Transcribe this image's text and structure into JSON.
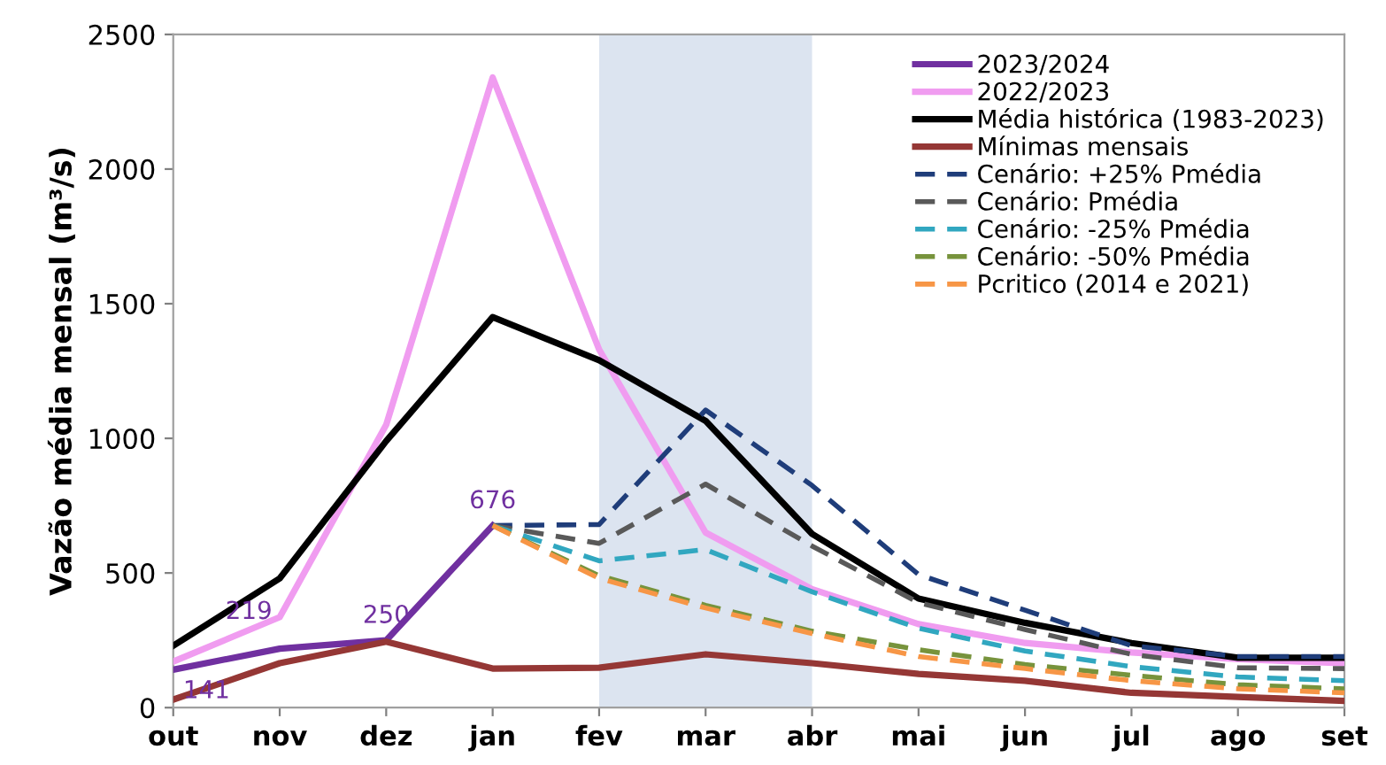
{
  "chart_data": {
    "type": "line",
    "ylabel": "Vazão média mensal (m³/s)",
    "categories": [
      "out",
      "nov",
      "dez",
      "jan",
      "fev",
      "mar",
      "abr",
      "mai",
      "jun",
      "jul",
      "ago",
      "set"
    ],
    "ylim": [
      0,
      2500
    ],
    "yticks": [
      0,
      500,
      1000,
      1500,
      2000,
      2500
    ],
    "grid": false,
    "legend": "top right",
    "marker": "none",
    "bands": [
      {
        "axis": "x",
        "from": "fev",
        "to": "abr",
        "color": "#dce4f0"
      }
    ],
    "series": [
      {
        "name": "2023/2024",
        "color": "#7030a0",
        "line_style": "solid",
        "values": [
          141,
          219,
          250,
          676,
          null,
          null,
          null,
          null,
          null,
          null,
          null,
          null
        ],
        "value_labels": [
          "141",
          "219",
          "250",
          "676",
          null,
          null,
          null,
          null,
          null,
          null,
          null,
          null
        ]
      },
      {
        "name": "2022/2023",
        "color": "#f09cf0",
        "line_style": "solid",
        "values": [
          171,
          336,
          1050,
          2340,
          1330,
          650,
          440,
          310,
          240,
          205,
          180,
          165
        ]
      },
      {
        "name": "Média histórica (1983-2023)",
        "color": "#000000",
        "line_style": "solid",
        "values": [
          230,
          480,
          990,
          1450,
          1290,
          1065,
          645,
          405,
          315,
          240,
          185,
          185
        ]
      },
      {
        "name": "Mínimas mensais",
        "color": "#953735",
        "line_style": "solid",
        "values": [
          30,
          165,
          245,
          145,
          148,
          198,
          165,
          125,
          100,
          55,
          40,
          25
        ]
      },
      {
        "name": "Cenário: +25% Pmédia",
        "color": "#1f3d7a",
        "line_style": "dashed",
        "values": [
          null,
          null,
          null,
          676,
          680,
          1105,
          825,
          494,
          362,
          230,
          190,
          190
        ]
      },
      {
        "name": "Cenário: Pmédia",
        "color": "#595959",
        "line_style": "dashed",
        "values": [
          null,
          null,
          null,
          676,
          610,
          830,
          600,
          390,
          290,
          198,
          148,
          145
        ]
      },
      {
        "name": "Cenário: -25% Pmédia",
        "color": "#31a7c0",
        "line_style": "dashed",
        "values": [
          null,
          null,
          null,
          676,
          545,
          587,
          430,
          295,
          210,
          152,
          114,
          100
        ]
      },
      {
        "name": "Cenário: -50% Pmédia",
        "color": "#77933c",
        "line_style": "dashed",
        "values": [
          null,
          null,
          null,
          676,
          490,
          380,
          284,
          215,
          160,
          120,
          85,
          70
        ]
      },
      {
        "name": "Pcritico (2014 e 2021)",
        "color": "#f79646",
        "line_style": "dashed",
        "values": [
          null,
          null,
          null,
          676,
          480,
          370,
          275,
          190,
          145,
          100,
          70,
          55
        ]
      }
    ]
  }
}
